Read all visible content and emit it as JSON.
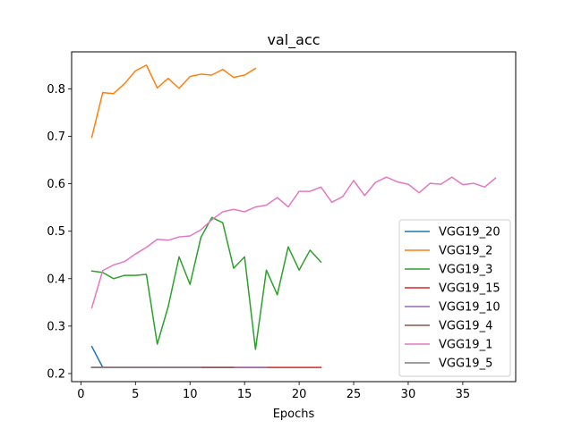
{
  "chart_data": {
    "type": "line",
    "title": "val_acc",
    "xlabel": "Epochs",
    "ylabel": "",
    "xlim": [
      -0.85,
      39.85
    ],
    "ylim": [
      0.183,
      0.878
    ],
    "xticks": [
      0,
      5,
      10,
      15,
      20,
      25,
      30,
      35
    ],
    "yticks": [
      0.2,
      0.3,
      0.4,
      0.5,
      0.6,
      0.7,
      0.8
    ],
    "grid": false,
    "legend_position": "lower-right",
    "series": [
      {
        "name": "VGG19_20",
        "color": "#1f77b4",
        "x": [
          1,
          2
        ],
        "y": [
          0.257,
          0.213
        ]
      },
      {
        "name": "VGG19_2",
        "color": "#ff7f0e",
        "x": [
          1,
          2,
          3,
          4,
          5,
          6,
          7,
          8,
          9,
          10,
          11,
          12,
          13,
          14,
          15,
          16
        ],
        "y": [
          0.698,
          0.792,
          0.79,
          0.811,
          0.838,
          0.85,
          0.802,
          0.822,
          0.801,
          0.826,
          0.831,
          0.829,
          0.841,
          0.824,
          0.829,
          0.843
        ]
      },
      {
        "name": "VGG19_3",
        "color": "#2ca02c",
        "x": [
          1,
          2,
          3,
          4,
          5,
          6,
          7,
          8,
          9,
          10,
          11,
          12,
          13,
          14,
          15,
          16,
          17,
          18,
          19,
          20,
          21,
          22
        ],
        "y": [
          0.416,
          0.413,
          0.4,
          0.407,
          0.407,
          0.409,
          0.262,
          0.341,
          0.446,
          0.388,
          0.487,
          0.529,
          0.518,
          0.422,
          0.446,
          0.251,
          0.418,
          0.366,
          0.467,
          0.418,
          0.46,
          0.435
        ]
      },
      {
        "name": "VGG19_15",
        "color": "#d62728",
        "x": [
          1,
          2,
          3,
          4,
          5,
          6,
          7,
          8,
          9,
          10,
          11,
          12,
          13,
          14,
          15,
          16,
          17,
          18,
          19,
          20,
          21,
          22
        ],
        "y": [
          0.213,
          0.213,
          0.213,
          0.213,
          0.213,
          0.213,
          0.213,
          0.213,
          0.213,
          0.213,
          0.213,
          0.213,
          0.213,
          0.213,
          0.213,
          0.213,
          0.213,
          0.213,
          0.213,
          0.213,
          0.213,
          0.213
        ]
      },
      {
        "name": "VGG19_10",
        "color": "#9467bd",
        "x": [
          1,
          2,
          3,
          4,
          5,
          6,
          7,
          8,
          9,
          10,
          11,
          12,
          13,
          14,
          15,
          16,
          17
        ],
        "y": [
          0.213,
          0.213,
          0.213,
          0.213,
          0.213,
          0.213,
          0.213,
          0.213,
          0.213,
          0.213,
          0.213,
          0.213,
          0.213,
          0.213,
          0.213,
          0.213,
          0.213
        ]
      },
      {
        "name": "VGG19_4",
        "color": "#8c564b",
        "x": [
          1,
          2,
          3,
          4,
          5,
          6,
          7,
          8,
          9,
          10,
          11,
          12,
          13,
          14
        ],
        "y": [
          0.213,
          0.213,
          0.213,
          0.213,
          0.213,
          0.213,
          0.213,
          0.213,
          0.213,
          0.213,
          0.213,
          0.213,
          0.213,
          0.213
        ]
      },
      {
        "name": "VGG19_1",
        "color": "#e377c2",
        "x": [
          1,
          2,
          3,
          4,
          5,
          6,
          7,
          8,
          9,
          10,
          11,
          12,
          13,
          14,
          15,
          16,
          17,
          18,
          19,
          20,
          21,
          22,
          23,
          24,
          25,
          26,
          27,
          28,
          29,
          30,
          31,
          32,
          33,
          34,
          35,
          36,
          37,
          38
        ],
        "y": [
          0.339,
          0.417,
          0.429,
          0.436,
          0.452,
          0.466,
          0.483,
          0.481,
          0.488,
          0.49,
          0.503,
          0.524,
          0.541,
          0.546,
          0.541,
          0.551,
          0.555,
          0.571,
          0.551,
          0.584,
          0.584,
          0.593,
          0.561,
          0.573,
          0.607,
          0.575,
          0.603,
          0.614,
          0.604,
          0.599,
          0.581,
          0.601,
          0.599,
          0.614,
          0.598,
          0.601,
          0.593,
          0.612
        ]
      },
      {
        "name": "VGG19_5",
        "color": "#7f7f7f",
        "x": [
          1,
          2,
          3,
          4,
          5,
          6,
          7,
          8,
          9,
          10,
          11
        ],
        "y": [
          0.213,
          0.213,
          0.213,
          0.213,
          0.213,
          0.213,
          0.213,
          0.213,
          0.213,
          0.213,
          0.213
        ]
      }
    ]
  }
}
